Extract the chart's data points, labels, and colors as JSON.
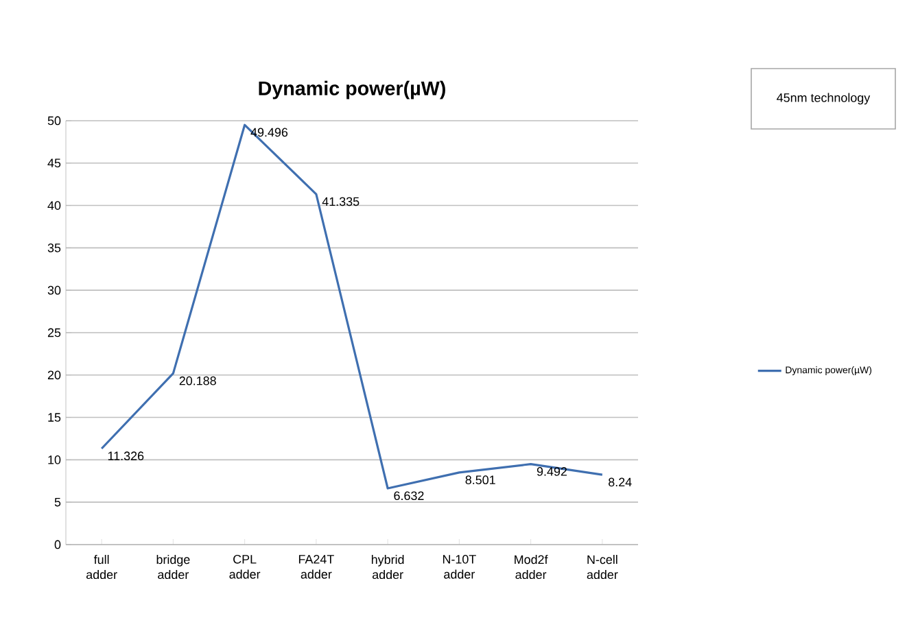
{
  "chart_data": {
    "type": "line",
    "title": "Dynamic power(µW)",
    "categories": [
      "full adder",
      "bridge adder",
      "CPL adder",
      "FA24T adder",
      "hybrid adder",
      "N-10T adder",
      "Mod2f adder",
      "N-cell adder"
    ],
    "series": [
      {
        "name": "Dynamic power(µW)",
        "color": "#3f6fb0",
        "values": [
          11.326,
          20.188,
          49.496,
          41.335,
          6.632,
          8.501,
          9.492,
          8.24
        ],
        "value_labels": [
          "11.326",
          "20.188",
          "49.496",
          "41.335",
          "6.632",
          "8.501",
          "9.492",
          "8.24"
        ]
      }
    ],
    "ylim": [
      0,
      50
    ],
    "yticks": [
      0,
      5,
      10,
      15,
      20,
      25,
      30,
      35,
      40,
      45,
      50
    ],
    "grid": "y",
    "legend": "right",
    "marker": "none",
    "line_style": "solid",
    "annotations": [
      "45nm technology"
    ]
  }
}
